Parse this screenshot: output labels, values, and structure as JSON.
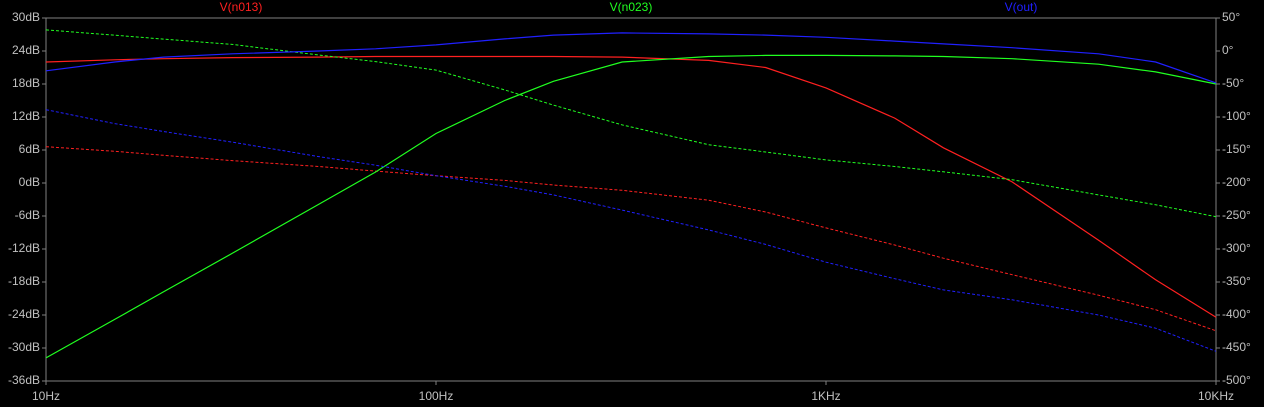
{
  "chart_data": {
    "type": "line",
    "xscale": "log",
    "x": [
      10,
      15,
      20,
      30,
      50,
      70,
      100,
      150,
      200,
      300,
      500,
      700,
      1000,
      1500,
      2000,
      3000,
      5000,
      7000,
      10000
    ],
    "xlim": [
      10,
      10000
    ],
    "xticks": [
      {
        "value": 10,
        "label": "10Hz"
      },
      {
        "value": 100,
        "label": "100Hz"
      },
      {
        "value": 1000,
        "label": "1KHz"
      },
      {
        "value": 10000,
        "label": "10KHz"
      }
    ],
    "ylim": [
      -36,
      30
    ],
    "yticks": [
      {
        "value": -36,
        "label": "-36dB"
      },
      {
        "value": -30,
        "label": "-30dB"
      },
      {
        "value": -24,
        "label": "-24dB"
      },
      {
        "value": -18,
        "label": "-18dB"
      },
      {
        "value": -12,
        "label": "-12dB"
      },
      {
        "value": -6,
        "label": "-6dB"
      },
      {
        "value": 0,
        "label": "0dB"
      },
      {
        "value": 6,
        "label": "6dB"
      },
      {
        "value": 12,
        "label": "12dB"
      },
      {
        "value": 18,
        "label": "18dB"
      },
      {
        "value": 24,
        "label": "24dB"
      },
      {
        "value": 30,
        "label": "30dB"
      }
    ],
    "y2lim": [
      -500,
      50
    ],
    "y2ticks": [
      {
        "value": -500,
        "label": "-500°"
      },
      {
        "value": -450,
        "label": "-450°"
      },
      {
        "value": -400,
        "label": "-400°"
      },
      {
        "value": -350,
        "label": "-350°"
      },
      {
        "value": -300,
        "label": "-300°"
      },
      {
        "value": -250,
        "label": "-250°"
      },
      {
        "value": -200,
        "label": "-200°"
      },
      {
        "value": -150,
        "label": "-150°"
      },
      {
        "value": -100,
        "label": "-100°"
      },
      {
        "value": -50,
        "label": "-50°"
      },
      {
        "value": 0,
        "label": "0°"
      },
      {
        "value": 50,
        "label": "50°"
      }
    ],
    "grid": false,
    "series": [
      {
        "name": "V(n013)",
        "color": "#ff2020",
        "values": [
          22,
          22.4,
          22.6,
          22.8,
          22.9,
          23,
          23,
          23,
          23,
          22.9,
          22.3,
          21,
          17.3,
          11.8,
          6.4,
          0.2,
          -10.4,
          -17.6,
          -24.4
        ],
        "phase": [
          -145,
          -152,
          -158,
          -166,
          -175,
          -182,
          -189,
          -196,
          -203,
          -211,
          -226,
          -244,
          -268,
          -294,
          -314,
          -339,
          -370,
          -392,
          -424
        ]
      },
      {
        "name": "V(n023)",
        "color": "#20ff20",
        "values": [
          -31.8,
          -24.8,
          -19.8,
          -12.8,
          -3.9,
          2,
          9,
          15,
          18.5,
          22,
          23,
          23.2,
          23.2,
          23.1,
          23,
          22.6,
          21.6,
          20.2,
          18
        ],
        "phase": [
          32,
          24,
          18,
          10,
          -6,
          -16,
          -29,
          -59,
          -82,
          -112,
          -142,
          -153,
          -165,
          -175,
          -183,
          -195,
          -218,
          -233,
          -251
        ]
      },
      {
        "name": "V(out)",
        "color": "#2020ff",
        "values": [
          20.4,
          22,
          22.9,
          23.5,
          24,
          24.4,
          25.1,
          26.2,
          26.9,
          27.3,
          27.1,
          26.9,
          26.5,
          25.8,
          25.3,
          24.6,
          23.5,
          22,
          18.2
        ],
        "phase": [
          -89,
          -110,
          -122,
          -138,
          -160,
          -173,
          -189,
          -205,
          -218,
          -241,
          -271,
          -293,
          -320,
          -345,
          -362,
          -377,
          -400,
          -420,
          -455
        ]
      }
    ]
  }
}
